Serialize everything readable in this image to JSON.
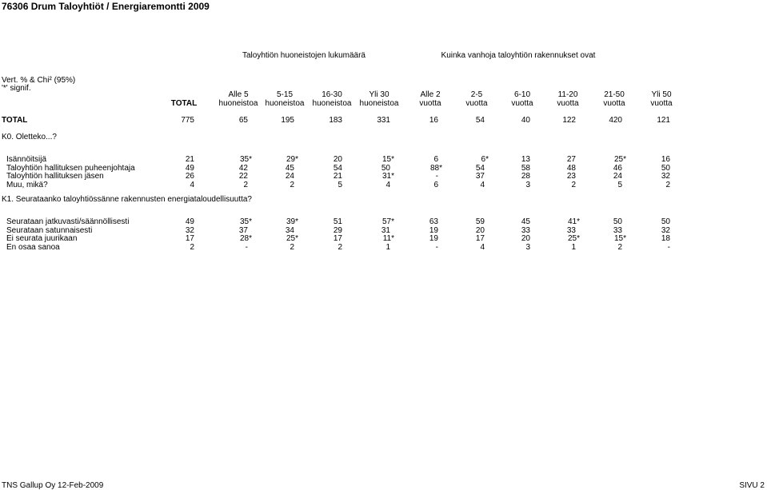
{
  "title": "76306 Drum Taloyhtiöt / Energiaremontti 2009",
  "groups": {
    "group1": "Taloyhtiön huoneistojen lukumäärä",
    "group2": "Kuinka vanhoja taloyhtiön rakennukset ovat"
  },
  "notes": {
    "line1": "Vert. % & Chi² (95%)",
    "line2": "'*' signif."
  },
  "columns": [
    {
      "top": "",
      "bottom": "TOTAL"
    },
    {
      "top": "Alle 5",
      "bottom": "huoneistoa"
    },
    {
      "top": "5-15",
      "bottom": "huoneistoa"
    },
    {
      "top": "16-30",
      "bottom": "huoneistoa"
    },
    {
      "top": "Yli 30",
      "bottom": "huoneistoa"
    },
    {
      "top": "Alle 2",
      "bottom": "vuotta"
    },
    {
      "top": "2-5",
      "bottom": "vuotta"
    },
    {
      "top": "6-10",
      "bottom": "vuotta"
    },
    {
      "top": "11-20",
      "bottom": "vuotta"
    },
    {
      "top": "21-50",
      "bottom": "vuotta"
    },
    {
      "top": "Yli 50",
      "bottom": "vuotta"
    }
  ],
  "total_row": {
    "label": "TOTAL",
    "values": [
      "775",
      "65",
      "195",
      "183",
      "331",
      "16",
      "54",
      "40",
      "122",
      "420",
      "121"
    ]
  },
  "sections": [
    {
      "question": "K0. Oletteko...?",
      "rows": [
        {
          "label": "Isännöitsijä",
          "values": [
            "21",
            "35*",
            "29*",
            "20",
            "15*",
            "6",
            "6*",
            "13",
            "27",
            "25*",
            "16"
          ]
        },
        {
          "label": "Taloyhtiön hallituksen puheenjohtaja",
          "values": [
            "49",
            "42",
            "45",
            "54",
            "50",
            "88*",
            "54",
            "58",
            "48",
            "46",
            "50"
          ]
        },
        {
          "label": "Taloyhtiön hallituksen jäsen",
          "values": [
            "26",
            "22",
            "24",
            "21",
            "31*",
            "-",
            "37",
            "28",
            "23",
            "24",
            "32"
          ]
        },
        {
          "label": "Muu, mikä?",
          "values": [
            "4",
            "2",
            "2",
            "5",
            "4",
            "6",
            "4",
            "3",
            "2",
            "5",
            "2"
          ]
        }
      ]
    },
    {
      "question": "K1. Seurataanko taloyhtiössänne rakennusten energiataloudellisuutta?",
      "rows": [
        {
          "label": "Seurataan jatkuvasti/säännöllisesti",
          "values": [
            "49",
            "35*",
            "39*",
            "51",
            "57*",
            "63",
            "59",
            "45",
            "41*",
            "50",
            "50"
          ]
        },
        {
          "label": "Seurataan satunnaisesti",
          "values": [
            "32",
            "37",
            "34",
            "29",
            "31",
            "19",
            "20",
            "33",
            "33",
            "33",
            "32"
          ]
        },
        {
          "label": "Ei seurata juurikaan",
          "values": [
            "17",
            "28*",
            "25*",
            "17",
            "11*",
            "19",
            "17",
            "20",
            "25*",
            "15*",
            "18"
          ]
        },
        {
          "label": "En osaa sanoa",
          "values": [
            "2",
            "-",
            "2",
            "2",
            "1",
            "-",
            "4",
            "3",
            "1",
            "2",
            "-"
          ]
        }
      ]
    }
  ],
  "footer": {
    "left": "TNS Gallup Oy 12-Feb-2009",
    "right": "SIVU 2"
  }
}
